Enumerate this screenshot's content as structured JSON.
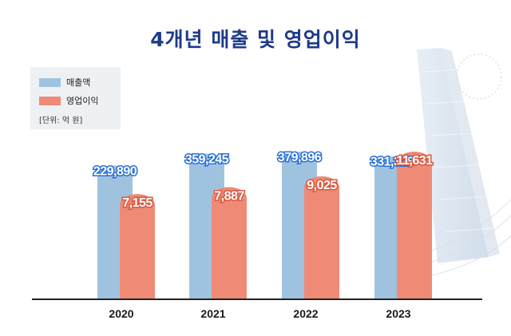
{
  "title": "4개년 매출 및 영업이익",
  "legend": {
    "items": [
      {
        "label": "매출액",
        "color": "#9fc3df"
      },
      {
        "label": "영업이익",
        "color": "#ee8a75"
      }
    ],
    "unit": "[단위: 억 원]"
  },
  "chart_data": {
    "type": "bar",
    "categories": [
      "2020",
      "2021",
      "2022",
      "2023"
    ],
    "series": [
      {
        "name": "매출액",
        "values": [
          229890,
          359245,
          379896,
          331328
        ],
        "labels": [
          "229,890",
          "359,245",
          "379,896",
          "331,328"
        ],
        "color": "#9fc3df"
      },
      {
        "name": "영업이익",
        "values": [
          7155,
          7887,
          9025,
          11631
        ],
        "labels": [
          "7,155",
          "7,887",
          "9,025",
          "11,631"
        ],
        "color": "#ee8a75"
      }
    ],
    "xlabel": "",
    "ylabel": "",
    "grid": false,
    "legend_position": "top-left"
  }
}
